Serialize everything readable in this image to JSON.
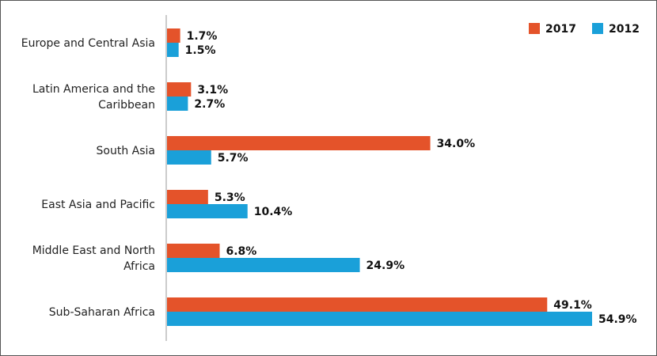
{
  "chart_data": {
    "type": "bar",
    "orientation": "horizontal",
    "categories": [
      [
        "Europe and Central Asia"
      ],
      [
        "Latin America and the",
        "Caribbean"
      ],
      [
        "South Asia"
      ],
      [
        "East Asia and Pacific"
      ],
      [
        "Middle East and North",
        "Africa"
      ],
      [
        "Sub-Saharan Africa"
      ]
    ],
    "series": [
      {
        "name": "2017",
        "color": "#e4532a",
        "values": [
          1.7,
          3.1,
          34.0,
          5.3,
          6.8,
          49.1
        ],
        "labels": [
          "1.7%",
          "3.1%",
          "34.0%",
          "5.3%",
          "6.8%",
          "49.1%"
        ]
      },
      {
        "name": "2012",
        "color": "#1aa0d9",
        "values": [
          1.5,
          2.7,
          5.7,
          10.4,
          24.9,
          54.9
        ],
        "labels": [
          "1.5%",
          "2.7%",
          "5.7%",
          "10.4%",
          "24.9%",
          "54.9%"
        ]
      }
    ],
    "xlim": [
      0,
      60
    ],
    "title": "",
    "xlabel": "",
    "ylabel": "",
    "grid": false,
    "legend_position": "top-right"
  }
}
